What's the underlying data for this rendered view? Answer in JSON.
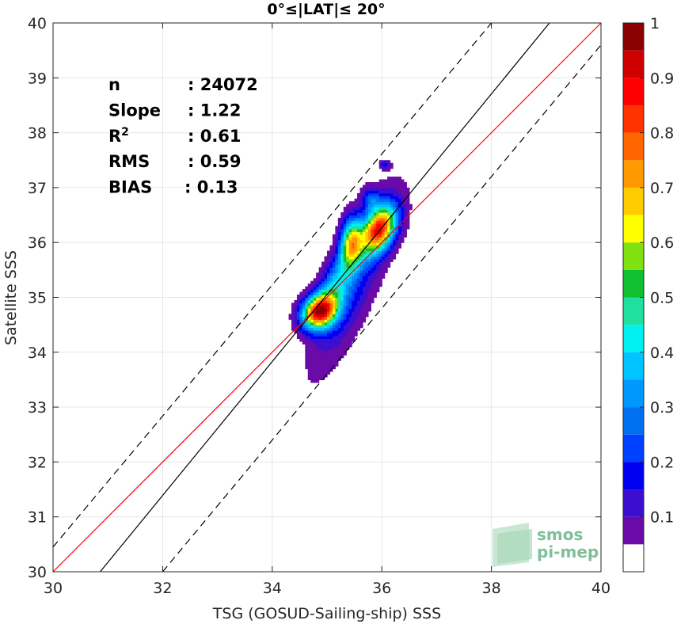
{
  "chart_data": {
    "type": "heatmap",
    "title": "0°≤|LAT|≤ 20°",
    "xlabel": "TSG (GOSUD-Sailing-ship) SSS",
    "ylabel": "Satellite SSS",
    "xlim": [
      30,
      40
    ],
    "ylim": [
      30,
      40
    ],
    "x_ticks": [
      "30",
      "32",
      "34",
      "36",
      "38",
      "40"
    ],
    "y_ticks": [
      "30",
      "31",
      "32",
      "33",
      "34",
      "35",
      "36",
      "37",
      "38",
      "39",
      "40"
    ],
    "grid": true,
    "stats": [
      {
        "label": "n",
        "value": ": 24072"
      },
      {
        "label": "Slope",
        "value": ": 1.22"
      },
      {
        "label": "R",
        "sup": "2",
        "value": ": 0.61"
      },
      {
        "label": "RMS",
        "value": ": 0.59"
      },
      {
        "label": "BIAS",
        "value": ": 0.13"
      }
    ],
    "lines": [
      {
        "name": "identity",
        "color": "#ff0000",
        "style": "solid",
        "points": [
          [
            30,
            30
          ],
          [
            40,
            40
          ]
        ]
      },
      {
        "name": "regression",
        "color": "#000000",
        "style": "solid",
        "points": [
          [
            30.86,
            30
          ],
          [
            39.06,
            40
          ]
        ]
      },
      {
        "name": "upper-bound",
        "color": "#000000",
        "style": "dashed",
        "points": [
          [
            30,
            30.45
          ],
          [
            38.0,
            40
          ]
        ]
      },
      {
        "name": "lower-bound",
        "color": "#000000",
        "style": "dashed",
        "points": [
          [
            32.0,
            30
          ],
          [
            40,
            39.6
          ]
        ]
      }
    ],
    "density_blobs": [
      {
        "cx": 35.5,
        "cy": 35.3,
        "sx": 0.55,
        "sy": 1.15,
        "rho": 0.82,
        "amp": 0.18
      },
      {
        "cx": 34.85,
        "cy": 34.75,
        "sx": 0.22,
        "sy": 0.22,
        "rho": 0.2,
        "amp": 0.85
      },
      {
        "cx": 35.95,
        "cy": 36.25,
        "sx": 0.22,
        "sy": 0.3,
        "rho": 0.4,
        "amp": 0.78
      },
      {
        "cx": 35.45,
        "cy": 36.0,
        "sx": 0.14,
        "sy": 0.32,
        "rho": 0.1,
        "amp": 0.55
      },
      {
        "cx": 35.15,
        "cy": 35.25,
        "sx": 0.22,
        "sy": 0.4,
        "rho": 0.5,
        "amp": 0.28
      },
      {
        "cx": 35.8,
        "cy": 36.8,
        "sx": 0.12,
        "sy": 0.15,
        "rho": 0.0,
        "amp": 0.2
      },
      {
        "cx": 36.05,
        "cy": 37.42,
        "sx": 0.07,
        "sy": 0.06,
        "rho": 0.0,
        "amp": 0.15
      }
    ],
    "density_threshold": 0.05,
    "colorbar": {
      "ticks": [
        "0.1",
        "0.2",
        "0.3",
        "0.4",
        "0.5",
        "0.6",
        "0.7",
        "0.8",
        "0.9",
        "1"
      ],
      "levels": [
        {
          "from": 0.0,
          "to": 0.05,
          "color": "#ffffff"
        },
        {
          "from": 0.05,
          "to": 0.1,
          "color": "#6a0aa8"
        },
        {
          "from": 0.1,
          "to": 0.15,
          "color": "#3a0fd0"
        },
        {
          "from": 0.15,
          "to": 0.2,
          "color": "#0000f0"
        },
        {
          "from": 0.2,
          "to": 0.25,
          "color": "#0040ff"
        },
        {
          "from": 0.25,
          "to": 0.3,
          "color": "#0070f0"
        },
        {
          "from": 0.3,
          "to": 0.35,
          "color": "#0098ff"
        },
        {
          "from": 0.35,
          "to": 0.4,
          "color": "#00c4ff"
        },
        {
          "from": 0.4,
          "to": 0.45,
          "color": "#00f0f0"
        },
        {
          "from": 0.45,
          "to": 0.5,
          "color": "#20e0a0"
        },
        {
          "from": 0.5,
          "to": 0.55,
          "color": "#10c030"
        },
        {
          "from": 0.55,
          "to": 0.6,
          "color": "#80e010"
        },
        {
          "from": 0.6,
          "to": 0.65,
          "color": "#ffff00"
        },
        {
          "from": 0.65,
          "to": 0.7,
          "color": "#ffcc00"
        },
        {
          "from": 0.7,
          "to": 0.75,
          "color": "#ff9900"
        },
        {
          "from": 0.75,
          "to": 0.8,
          "color": "#ff6600"
        },
        {
          "from": 0.8,
          "to": 0.85,
          "color": "#ff3300"
        },
        {
          "from": 0.85,
          "to": 0.9,
          "color": "#ff0000"
        },
        {
          "from": 0.9,
          "to": 0.95,
          "color": "#d00000"
        },
        {
          "from": 0.95,
          "to": 1.0,
          "color": "#8b0000"
        }
      ]
    }
  },
  "logo": {
    "line1": "smos",
    "line2": "pi-mep"
  }
}
